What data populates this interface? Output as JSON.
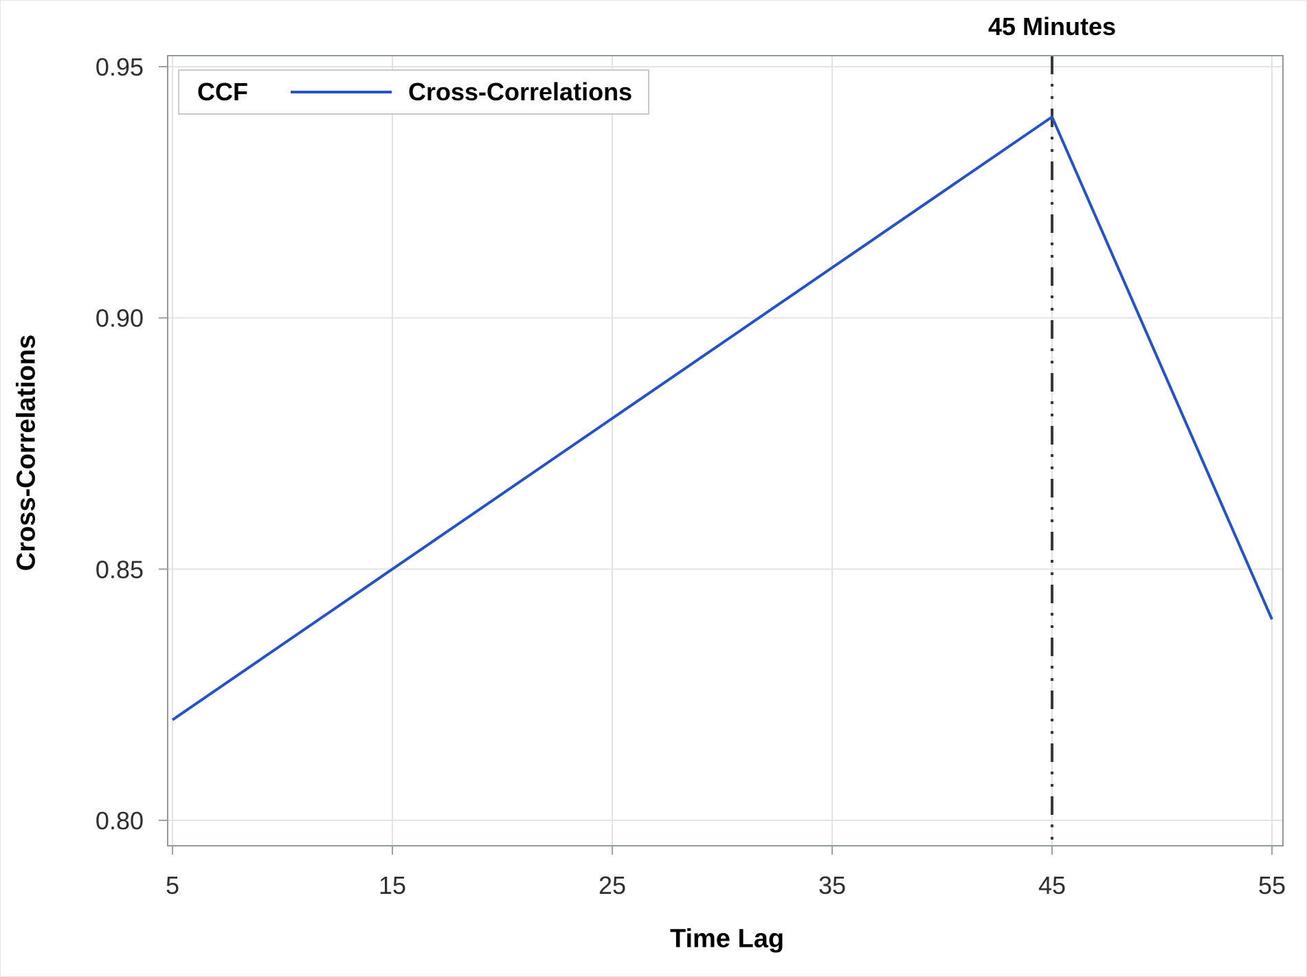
{
  "chart_data": {
    "type": "line",
    "title": "",
    "xlabel": "Time Lag",
    "ylabel": "Cross-Correlations",
    "legend": {
      "title": "CCF",
      "position": "top-left-inside",
      "entries": [
        {
          "label": "Cross-Correlations",
          "color": "#2553c6"
        }
      ]
    },
    "x": [
      5,
      10,
      15,
      20,
      25,
      30,
      35,
      40,
      45,
      50,
      55
    ],
    "series": [
      {
        "name": "Cross-Correlations",
        "color": "#2553c6",
        "values": [
          0.82,
          0.835,
          0.85,
          0.865,
          0.88,
          0.895,
          0.91,
          0.925,
          0.94,
          0.89,
          0.84
        ]
      }
    ],
    "xlim": [
      5,
      55
    ],
    "ylim": [
      0.8,
      0.95
    ],
    "xticks": [
      {
        "v": 5,
        "label": "5"
      },
      {
        "v": 15,
        "label": "15"
      },
      {
        "v": 25,
        "label": "25"
      },
      {
        "v": 35,
        "label": "35"
      },
      {
        "v": 45,
        "label": "45"
      },
      {
        "v": 55,
        "label": "55"
      }
    ],
    "yticks": [
      {
        "v": 0.8,
        "label": "0.80"
      },
      {
        "v": 0.85,
        "label": "0.85"
      },
      {
        "v": 0.9,
        "label": "0.90"
      },
      {
        "v": 0.95,
        "label": "0.95"
      }
    ],
    "grid": true,
    "refline": {
      "x": 45,
      "label": "45 Minutes",
      "style": "dash-dot-dot",
      "color": "#3a3a3a"
    },
    "colors": {
      "background": "#ffffff",
      "grid": "#e4e4e4",
      "frame": "#8f9b9b",
      "tick": "#9aa4a4",
      "tick_label": "#2e2e2e",
      "text": "#000000"
    }
  }
}
